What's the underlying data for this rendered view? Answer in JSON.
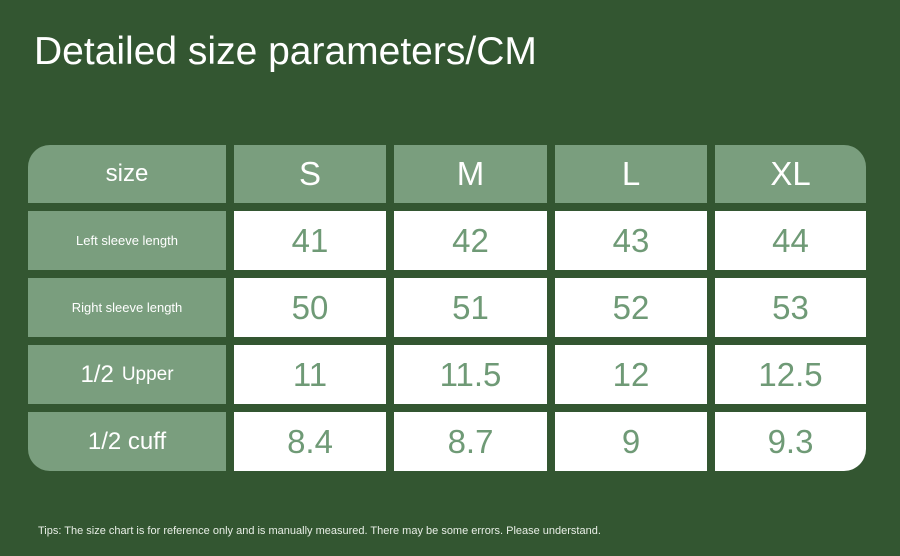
{
  "title": "Detailed size parameters/CM",
  "table": {
    "corner": "size",
    "sizes": [
      "S",
      "M",
      "L",
      "XL"
    ],
    "rows": [
      {
        "label": "Left sleeve length",
        "values": [
          "41",
          "42",
          "43",
          "44"
        ]
      },
      {
        "label": "Right sleeve length",
        "values": [
          "50",
          "51",
          "52",
          "53"
        ]
      },
      {
        "label_main": "1/2",
        "label_sub": "Upper",
        "values": [
          "11",
          "11.5",
          "12",
          "12.5"
        ]
      },
      {
        "label": "1/2 cuff",
        "values": [
          "8.4",
          "8.7",
          "9",
          "9.3"
        ]
      }
    ]
  },
  "tips": "Tips: The size chart is for reference only and is manually measured. There may be some errors. Please understand.",
  "colors": {
    "background": "#335631",
    "header_cell": "#7a9e7e",
    "value_text": "#6f9a76"
  }
}
